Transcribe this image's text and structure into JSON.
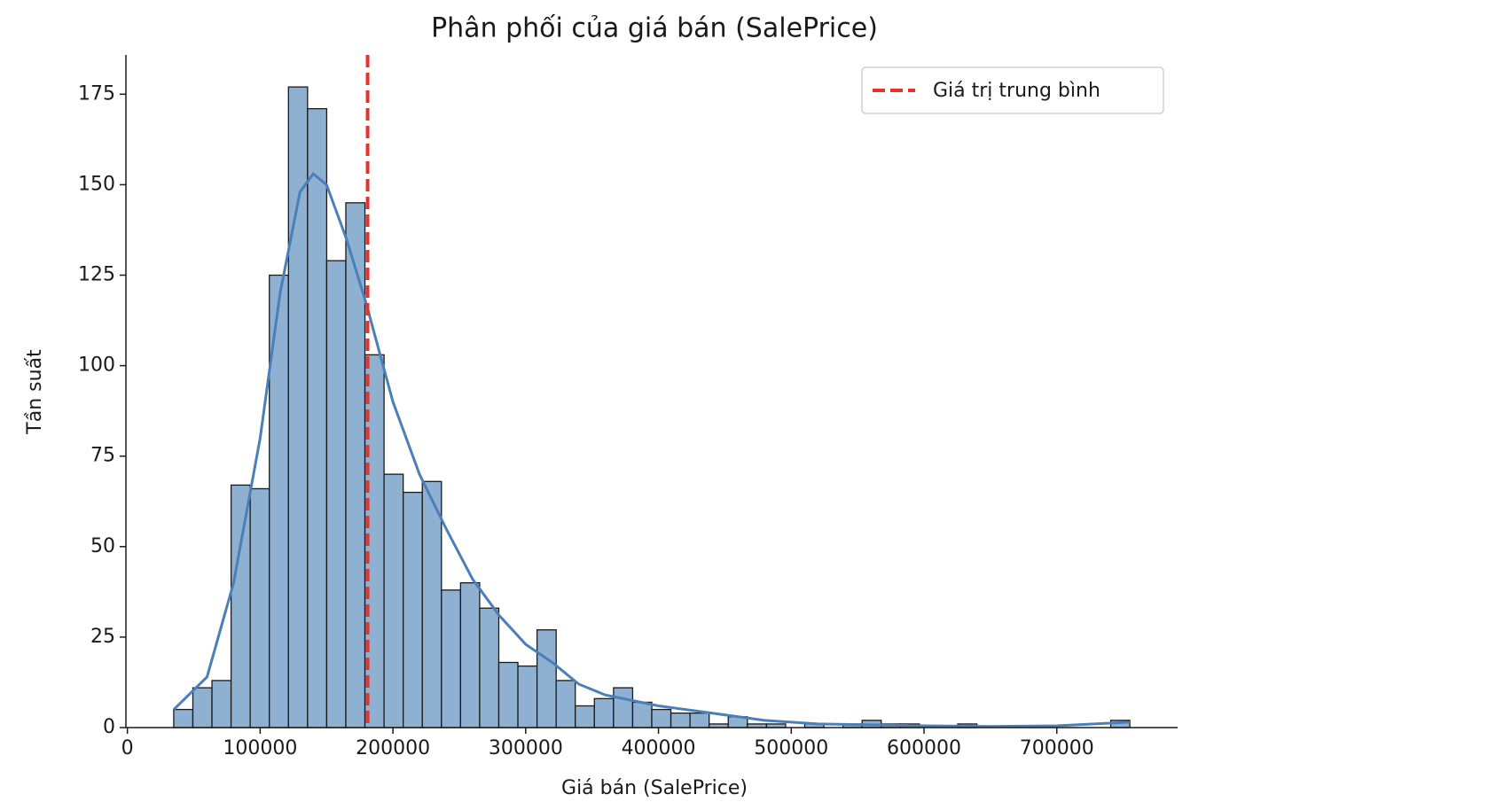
{
  "chart_data": {
    "type": "histogram",
    "title": "Phân phối của giá bán (SalePrice)",
    "x_label": "Giá bán (SalePrice)",
    "y_label": "Tần suất",
    "bins": [
      34900,
      49302,
      63704,
      78106,
      92508,
      106910,
      121312,
      135714,
      150116,
      164518,
      178920,
      193322,
      207724,
      222126,
      236528,
      250930,
      265332,
      279734,
      294136,
      308538,
      322940,
      337342,
      351744,
      366146,
      380548,
      394950,
      409352,
      423754,
      438156,
      452558,
      466960,
      481362,
      495764,
      510166,
      524568,
      538970,
      553372,
      567774,
      582176,
      596578,
      610980,
      625382,
      639784,
      654186,
      668588,
      682990,
      697392,
      711794,
      726196,
      740598,
      755000
    ],
    "values": [
      5,
      11,
      13,
      67,
      66,
      125,
      177,
      171,
      129,
      145,
      103,
      70,
      65,
      68,
      38,
      40,
      33,
      18,
      17,
      27,
      13,
      6,
      8,
      11,
      7,
      5,
      4,
      4,
      1,
      3,
      1,
      1,
      0,
      1,
      0,
      1,
      2,
      1,
      1,
      0,
      0,
      1,
      0,
      0,
      0,
      0,
      0,
      0,
      0,
      2
    ],
    "color": "#8eb0d1",
    "edge_color": "#1a1a1a",
    "kde": {
      "color": "#4a7fb8",
      "x": [
        35000,
        60000,
        80000,
        100000,
        115000,
        130000,
        140000,
        150000,
        165000,
        180000,
        200000,
        220000,
        240000,
        260000,
        280000,
        300000,
        320000,
        340000,
        360000,
        380000,
        400000,
        440000,
        480000,
        520000,
        600000,
        650000,
        700000,
        755000
      ],
      "values": [
        5,
        14,
        40,
        80,
        120,
        148,
        153,
        150,
        135,
        117,
        90,
        70,
        55,
        41,
        31,
        23,
        18,
        12,
        9,
        7.5,
        6,
        4,
        2,
        1,
        0.5,
        0.3,
        0.5,
        1.5
      ]
    },
    "mean": {
      "name": "Giá trị trung bình",
      "value": 180921,
      "color": "#e8312a"
    },
    "legend": "upper right",
    "xlim": [
      -1105,
      791005
    ],
    "ylim": [
      0,
      185.85
    ],
    "xticks": [
      0,
      100000,
      200000,
      300000,
      400000,
      500000,
      600000,
      700000
    ],
    "yticks": [
      0,
      25,
      50,
      75,
      100,
      125,
      150,
      175
    ]
  }
}
